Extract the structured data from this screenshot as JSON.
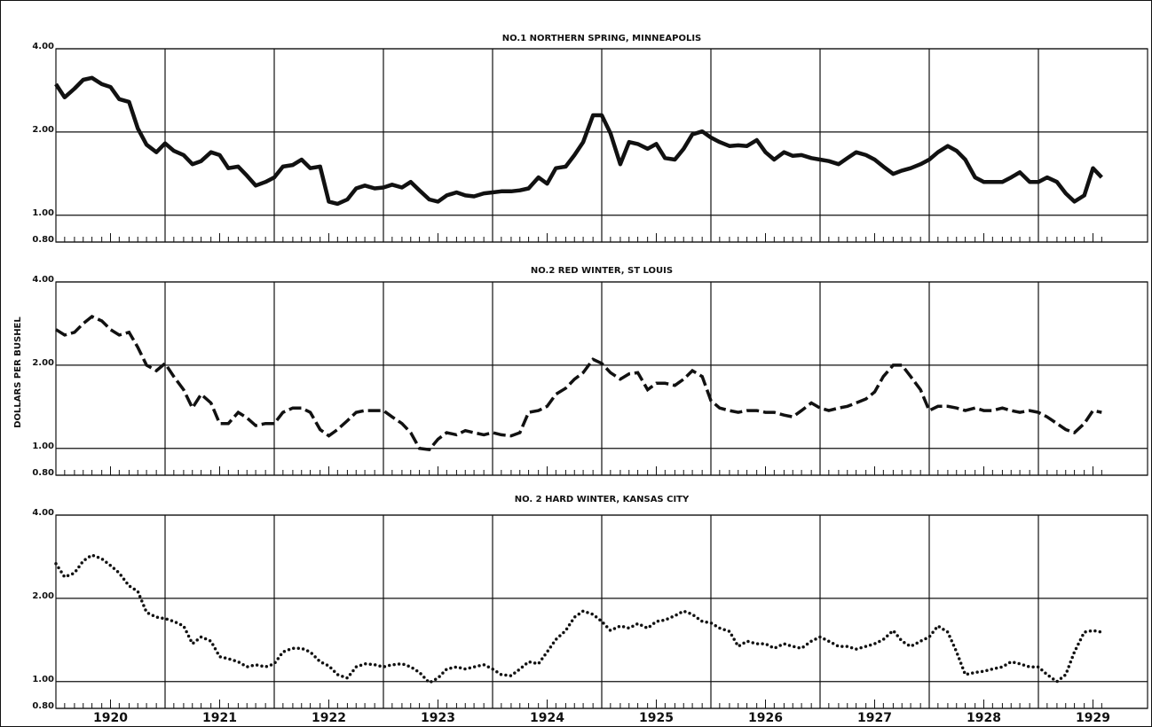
{
  "ylabel": "DOLLARS PER BUSHEL",
  "chart_data": [
    {
      "type": "line",
      "title": "NO.1 NORTHERN SPRING, MINNEAPOLIS",
      "line_style": "solid",
      "color": "#111111",
      "log_scale": true,
      "grid": true,
      "ylim": [
        0.8,
        4.0
      ],
      "yticks": [
        {
          "value": 0.8,
          "label": "0.80"
        },
        {
          "value": 1,
          "label": "1.00"
        },
        {
          "value": 2,
          "label": "2.00"
        },
        {
          "value": 4,
          "label": "4.00"
        }
      ],
      "xlim": [
        1920,
        1930
      ],
      "xgrid": [
        1921,
        1922,
        1923,
        1924,
        1925,
        1926,
        1927,
        1928,
        1929
      ],
      "x": [
        1920.0,
        1920.08,
        1920.17,
        1920.25,
        1920.33,
        1920.42,
        1920.5,
        1920.58,
        1920.67,
        1920.75,
        1920.83,
        1920.92,
        1921.0,
        1921.08,
        1921.17,
        1921.25,
        1921.33,
        1921.42,
        1921.5,
        1921.58,
        1921.67,
        1921.75,
        1921.83,
        1921.92,
        1922.0,
        1922.08,
        1922.17,
        1922.25,
        1922.33,
        1922.42,
        1922.5,
        1922.58,
        1922.67,
        1922.75,
        1922.83,
        1922.92,
        1923.0,
        1923.08,
        1923.17,
        1923.25,
        1923.33,
        1923.42,
        1923.5,
        1923.58,
        1923.67,
        1923.75,
        1923.83,
        1923.92,
        1924.0,
        1924.08,
        1924.17,
        1924.25,
        1924.33,
        1924.42,
        1924.5,
        1924.58,
        1924.67,
        1924.75,
        1924.83,
        1924.92,
        1925.0,
        1925.08,
        1925.17,
        1925.25,
        1925.33,
        1925.42,
        1925.5,
        1925.58,
        1925.67,
        1925.75,
        1925.83,
        1925.92,
        1926.0,
        1926.08,
        1926.17,
        1926.25,
        1926.33,
        1926.42,
        1926.5,
        1926.58,
        1926.67,
        1926.75,
        1926.83,
        1926.92,
        1927.0,
        1927.08,
        1927.17,
        1927.25,
        1927.33,
        1927.42,
        1927.5,
        1927.58,
        1927.67,
        1927.75,
        1927.83,
        1927.92,
        1928.0,
        1928.08,
        1928.17,
        1928.25,
        1928.33,
        1928.42,
        1928.5,
        1928.58,
        1928.67,
        1928.75,
        1928.83,
        1928.92,
        1929.0,
        1929.08,
        1929.17,
        1929.25,
        1929.33,
        1929.42,
        1929.5,
        1929.58
      ],
      "values": [
        2.98,
        2.67,
        2.87,
        3.09,
        3.14,
        2.98,
        2.91,
        2.63,
        2.57,
        2.06,
        1.8,
        1.69,
        1.82,
        1.71,
        1.65,
        1.53,
        1.57,
        1.69,
        1.65,
        1.48,
        1.5,
        1.39,
        1.28,
        1.32,
        1.37,
        1.5,
        1.52,
        1.59,
        1.48,
        1.5,
        1.12,
        1.1,
        1.14,
        1.25,
        1.28,
        1.25,
        1.26,
        1.29,
        1.26,
        1.32,
        1.23,
        1.14,
        1.12,
        1.18,
        1.21,
        1.18,
        1.17,
        1.2,
        1.21,
        1.22,
        1.22,
        1.23,
        1.25,
        1.37,
        1.3,
        1.48,
        1.5,
        1.65,
        1.84,
        2.3,
        2.3,
        1.98,
        1.53,
        1.84,
        1.81,
        1.74,
        1.81,
        1.61,
        1.59,
        1.74,
        1.96,
        2.01,
        1.91,
        1.84,
        1.78,
        1.79,
        1.78,
        1.87,
        1.69,
        1.59,
        1.69,
        1.64,
        1.65,
        1.61,
        1.59,
        1.57,
        1.53,
        1.61,
        1.69,
        1.65,
        1.59,
        1.5,
        1.41,
        1.45,
        1.48,
        1.53,
        1.59,
        1.69,
        1.78,
        1.71,
        1.59,
        1.37,
        1.32,
        1.32,
        1.32,
        1.37,
        1.43,
        1.32,
        1.32,
        1.37,
        1.32,
        1.2,
        1.12,
        1.18,
        1.48,
        1.37
      ]
    },
    {
      "type": "line",
      "title": "NO.2 RED WINTER, ST LOUIS",
      "line_style": "dashed",
      "color": "#111111",
      "log_scale": true,
      "grid": true,
      "ylim": [
        0.8,
        4.0
      ],
      "yticks": [
        {
          "value": 0.8,
          "label": "0.80"
        },
        {
          "value": 1,
          "label": "1.00"
        },
        {
          "value": 2,
          "label": "2.00"
        },
        {
          "value": 4,
          "label": "4.00"
        }
      ],
      "xlim": [
        1920,
        1930
      ],
      "xgrid": [
        1921,
        1922,
        1923,
        1924,
        1925,
        1926,
        1927,
        1928,
        1929
      ],
      "x": [
        1920.0,
        1920.08,
        1920.17,
        1920.25,
        1920.33,
        1920.42,
        1920.5,
        1920.58,
        1920.67,
        1920.75,
        1920.83,
        1920.92,
        1921.0,
        1921.08,
        1921.17,
        1921.25,
        1921.33,
        1921.42,
        1921.5,
        1921.58,
        1921.67,
        1921.75,
        1921.83,
        1921.92,
        1922.0,
        1922.08,
        1922.17,
        1922.25,
        1922.33,
        1922.42,
        1922.5,
        1922.58,
        1922.67,
        1922.75,
        1922.83,
        1922.92,
        1923.0,
        1923.08,
        1923.17,
        1923.25,
        1923.33,
        1923.42,
        1923.5,
        1923.58,
        1923.67,
        1923.75,
        1923.83,
        1923.92,
        1924.0,
        1924.08,
        1924.17,
        1924.25,
        1924.33,
        1924.42,
        1924.5,
        1924.58,
        1924.67,
        1924.75,
        1924.83,
        1924.92,
        1925.0,
        1925.08,
        1925.17,
        1925.25,
        1925.33,
        1925.42,
        1925.5,
        1925.58,
        1925.67,
        1925.75,
        1925.83,
        1925.92,
        1926.0,
        1926.08,
        1926.17,
        1926.25,
        1926.33,
        1926.42,
        1926.5,
        1926.58,
        1926.67,
        1926.75,
        1926.83,
        1926.92,
        1927.0,
        1927.08,
        1927.17,
        1927.25,
        1927.33,
        1927.42,
        1927.5,
        1927.58,
        1927.67,
        1927.75,
        1927.83,
        1927.92,
        1928.0,
        1928.08,
        1928.17,
        1928.25,
        1928.33,
        1928.42,
        1928.5,
        1928.58,
        1928.67,
        1928.75,
        1928.83,
        1928.92,
        1929.0,
        1929.08,
        1929.17,
        1929.25,
        1929.33,
        1929.42,
        1929.5,
        1929.58
      ],
      "values": [
        2.69,
        2.57,
        2.63,
        2.83,
        3.0,
        2.89,
        2.69,
        2.57,
        2.63,
        2.32,
        2.0,
        1.91,
        2.03,
        1.82,
        1.63,
        1.4,
        1.57,
        1.46,
        1.23,
        1.23,
        1.35,
        1.29,
        1.21,
        1.23,
        1.23,
        1.35,
        1.4,
        1.4,
        1.35,
        1.17,
        1.11,
        1.17,
        1.26,
        1.35,
        1.37,
        1.37,
        1.37,
        1.3,
        1.23,
        1.14,
        1.0,
        0.99,
        1.08,
        1.14,
        1.12,
        1.16,
        1.14,
        1.12,
        1.14,
        1.12,
        1.11,
        1.14,
        1.35,
        1.37,
        1.42,
        1.57,
        1.65,
        1.78,
        1.88,
        2.1,
        2.03,
        1.88,
        1.78,
        1.86,
        1.88,
        1.63,
        1.72,
        1.72,
        1.69,
        1.78,
        1.91,
        1.82,
        1.49,
        1.4,
        1.37,
        1.35,
        1.37,
        1.37,
        1.35,
        1.35,
        1.32,
        1.3,
        1.37,
        1.46,
        1.4,
        1.37,
        1.4,
        1.42,
        1.46,
        1.51,
        1.6,
        1.82,
        2.0,
        2.0,
        1.82,
        1.63,
        1.37,
        1.42,
        1.42,
        1.4,
        1.37,
        1.4,
        1.37,
        1.37,
        1.4,
        1.37,
        1.35,
        1.37,
        1.35,
        1.3,
        1.23,
        1.17,
        1.14,
        1.23,
        1.37,
        1.35
      ]
    },
    {
      "type": "line",
      "title": "NO. 2 HARD WINTER, KANSAS CITY",
      "line_style": "dotted",
      "color": "#111111",
      "log_scale": true,
      "grid": true,
      "ylim": [
        0.8,
        4.0
      ],
      "yticks": [
        {
          "value": 0.8,
          "label": "0.80"
        },
        {
          "value": 1,
          "label": "1.00"
        },
        {
          "value": 2,
          "label": "2.00"
        },
        {
          "value": 4,
          "label": "4.00"
        }
      ],
      "xlim": [
        1920,
        1930
      ],
      "xgrid": [
        1921,
        1922,
        1923,
        1924,
        1925,
        1926,
        1927,
        1928,
        1929
      ],
      "xticks": [
        {
          "value": 1920.5,
          "label": "1920"
        },
        {
          "value": 1921.5,
          "label": "1921"
        },
        {
          "value": 1922.5,
          "label": "1922"
        },
        {
          "value": 1923.5,
          "label": "1923"
        },
        {
          "value": 1924.5,
          "label": "1924"
        },
        {
          "value": 1925.5,
          "label": "1925"
        },
        {
          "value": 1926.5,
          "label": "1926"
        },
        {
          "value": 1927.5,
          "label": "1927"
        },
        {
          "value": 1928.5,
          "label": "1928"
        },
        {
          "value": 1929.5,
          "label": "1929"
        }
      ],
      "x": [
        1920.0,
        1920.08,
        1920.17,
        1920.25,
        1920.33,
        1920.42,
        1920.5,
        1920.58,
        1920.67,
        1920.75,
        1920.83,
        1920.92,
        1921.0,
        1921.08,
        1921.17,
        1921.25,
        1921.33,
        1921.42,
        1921.5,
        1921.58,
        1921.67,
        1921.75,
        1921.83,
        1921.92,
        1922.0,
        1922.08,
        1922.17,
        1922.25,
        1922.33,
        1922.42,
        1922.5,
        1922.58,
        1922.67,
        1922.75,
        1922.83,
        1922.92,
        1923.0,
        1923.08,
        1923.17,
        1923.25,
        1923.33,
        1923.42,
        1923.5,
        1923.58,
        1923.67,
        1923.75,
        1923.83,
        1923.92,
        1924.0,
        1924.08,
        1924.17,
        1924.25,
        1924.33,
        1924.42,
        1924.5,
        1924.58,
        1924.67,
        1924.75,
        1924.83,
        1924.92,
        1925.0,
        1925.08,
        1925.17,
        1925.25,
        1925.33,
        1925.42,
        1925.5,
        1925.58,
        1925.67,
        1925.75,
        1925.83,
        1925.92,
        1926.0,
        1926.08,
        1926.17,
        1926.25,
        1926.33,
        1926.42,
        1926.5,
        1926.58,
        1926.67,
        1926.75,
        1926.83,
        1926.92,
        1927.0,
        1927.08,
        1927.17,
        1927.25,
        1927.33,
        1927.42,
        1927.5,
        1927.58,
        1927.67,
        1927.75,
        1927.83,
        1927.92,
        1928.0,
        1928.08,
        1928.17,
        1928.25,
        1928.33,
        1928.42,
        1928.5,
        1928.58,
        1928.67,
        1928.75,
        1928.83,
        1928.92,
        1929.0,
        1929.08,
        1929.17,
        1929.25,
        1929.33,
        1929.42,
        1929.5,
        1929.58
      ],
      "values": [
        2.67,
        2.39,
        2.47,
        2.73,
        2.87,
        2.78,
        2.63,
        2.47,
        2.22,
        2.12,
        1.78,
        1.71,
        1.69,
        1.65,
        1.59,
        1.37,
        1.45,
        1.4,
        1.23,
        1.21,
        1.18,
        1.13,
        1.15,
        1.13,
        1.16,
        1.28,
        1.32,
        1.32,
        1.28,
        1.18,
        1.14,
        1.06,
        1.03,
        1.13,
        1.16,
        1.15,
        1.13,
        1.15,
        1.16,
        1.13,
        1.08,
        0.99,
        1.03,
        1.11,
        1.13,
        1.11,
        1.13,
        1.15,
        1.11,
        1.06,
        1.05,
        1.11,
        1.18,
        1.16,
        1.28,
        1.42,
        1.53,
        1.71,
        1.8,
        1.75,
        1.65,
        1.53,
        1.59,
        1.56,
        1.62,
        1.56,
        1.65,
        1.67,
        1.73,
        1.8,
        1.75,
        1.65,
        1.63,
        1.56,
        1.52,
        1.34,
        1.4,
        1.37,
        1.37,
        1.32,
        1.37,
        1.34,
        1.32,
        1.4,
        1.45,
        1.4,
        1.34,
        1.34,
        1.31,
        1.34,
        1.37,
        1.42,
        1.53,
        1.4,
        1.34,
        1.4,
        1.45,
        1.59,
        1.51,
        1.28,
        1.06,
        1.08,
        1.09,
        1.11,
        1.13,
        1.18,
        1.16,
        1.13,
        1.13,
        1.06,
        1.0,
        1.06,
        1.28,
        1.51,
        1.53,
        1.51
      ]
    }
  ]
}
